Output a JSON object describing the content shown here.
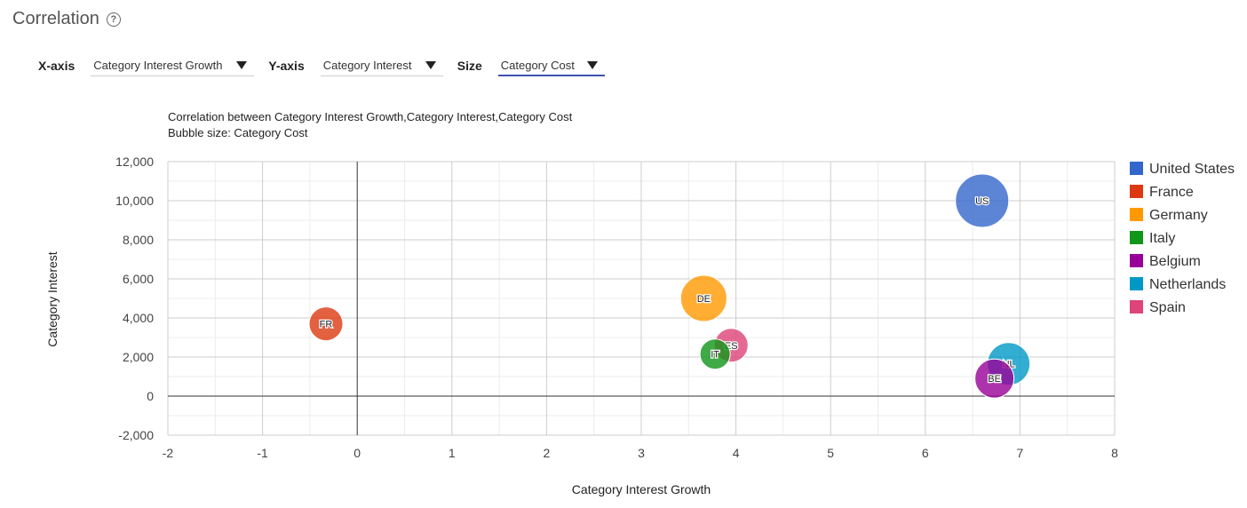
{
  "header": {
    "title": "Correlation",
    "help_icon": "help-circle-icon"
  },
  "controls": {
    "x_label": "X-axis",
    "x_value": "Category Interest Growth",
    "y_label": "Y-axis",
    "y_value": "Category Interest",
    "size_label": "Size",
    "size_value": "Category Cost"
  },
  "chart_data": {
    "type": "scatter",
    "subtype": "bubble",
    "title": "Correlation between Category Interest Growth,Category Interest,Category Cost",
    "subtitle": "Bubble size: Category Cost",
    "xlabel": "Category Interest Growth",
    "ylabel": "Category Interest",
    "xlim": [
      -2,
      8
    ],
    "ylim": [
      -2000,
      12000
    ],
    "x_ticks": [
      "-2",
      "-1",
      "0",
      "1",
      "2",
      "3",
      "4",
      "5",
      "6",
      "7",
      "8"
    ],
    "y_ticks": [
      "-2,000",
      "0",
      "2,000",
      "4,000",
      "6,000",
      "8,000",
      "10,000",
      "12,000"
    ],
    "grid": true,
    "legend_position": "right",
    "points": [
      {
        "name": "United States",
        "label": "US",
        "x": 6.6,
        "y": 10000,
        "size": 30,
        "color": "#3366cc"
      },
      {
        "name": "France",
        "label": "FR",
        "x": -0.33,
        "y": 3700,
        "size": 19,
        "color": "#dc3912"
      },
      {
        "name": "Germany",
        "label": "DE",
        "x": 3.66,
        "y": 5000,
        "size": 26,
        "color": "#ff9900"
      },
      {
        "name": "Italy",
        "label": "IT",
        "x": 3.78,
        "y": 2150,
        "size": 17,
        "color": "#109618"
      },
      {
        "name": "Belgium",
        "label": "BE",
        "x": 6.73,
        "y": 900,
        "size": 22,
        "color": "#990099"
      },
      {
        "name": "Netherlands",
        "label": "NL",
        "x": 6.88,
        "y": 1650,
        "size": 24,
        "color": "#0099c6"
      },
      {
        "name": "Spain",
        "label": "ES",
        "x": 3.95,
        "y": 2600,
        "size": 19,
        "color": "#dd4477"
      }
    ]
  }
}
